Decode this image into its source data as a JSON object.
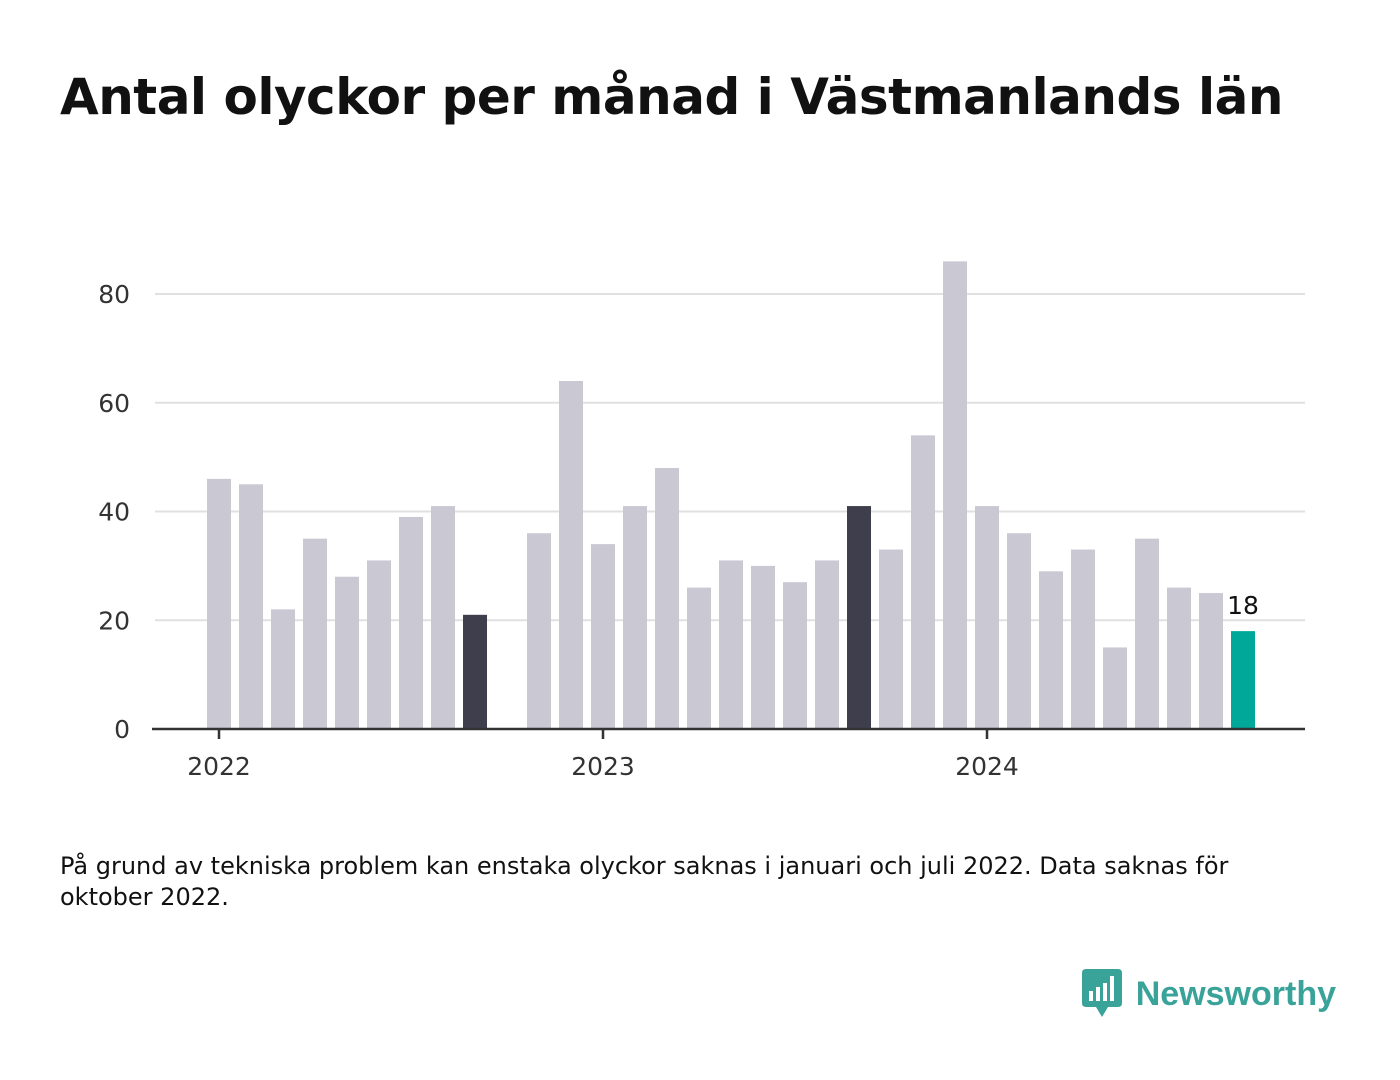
{
  "title": "Antal olyckor per månad i Västmanlands län",
  "chart_data": {
    "type": "bar",
    "x": [
      "2022-01",
      "2022-02",
      "2022-03",
      "2022-04",
      "2022-05",
      "2022-06",
      "2022-07",
      "2022-08",
      "2022-09",
      "2022-10",
      "2022-11",
      "2022-12",
      "2023-01",
      "2023-02",
      "2023-03",
      "2023-04",
      "2023-05",
      "2023-06",
      "2023-07",
      "2023-08",
      "2023-09",
      "2023-10",
      "2023-11",
      "2023-12",
      "2024-01",
      "2024-02",
      "2024-03",
      "2024-04",
      "2024-05",
      "2024-06",
      "2024-07",
      "2024-08",
      "2024-09"
    ],
    "values": [
      46,
      45,
      22,
      35,
      28,
      31,
      39,
      41,
      21,
      null,
      36,
      64,
      34,
      41,
      48,
      26,
      31,
      30,
      27,
      31,
      41,
      33,
      54,
      86,
      41,
      36,
      29,
      33,
      15,
      35,
      26,
      25,
      18
    ],
    "highlight_months": [
      "2022-09",
      "2023-09"
    ],
    "current_month": "2024-09",
    "colors": {
      "bar": "#c9c8d3",
      "highlight": "#3f3e4c",
      "current": "#00a89a",
      "grid": "#e0e0e0",
      "axis": "#333333"
    },
    "ylim": [
      0,
      90
    ],
    "yticks": [
      0,
      20,
      40,
      60,
      80
    ],
    "xticks": [
      {
        "at": "2022-01",
        "label": "2022"
      },
      {
        "at": "2023-01",
        "label": "2023"
      },
      {
        "at": "2024-01",
        "label": "2024"
      }
    ],
    "value_labels": [
      {
        "at": "2024-09",
        "label": "18"
      }
    ],
    "grid": true,
    "legend": false
  },
  "footnote": "På grund av tekniska problem kan enstaka olyckor saknas i januari och juli 2022. Data saknas för oktober 2022.",
  "brand": {
    "name": "Newsworthy",
    "icon": "newsworthy-logo-icon",
    "color": "#3aa399"
  }
}
